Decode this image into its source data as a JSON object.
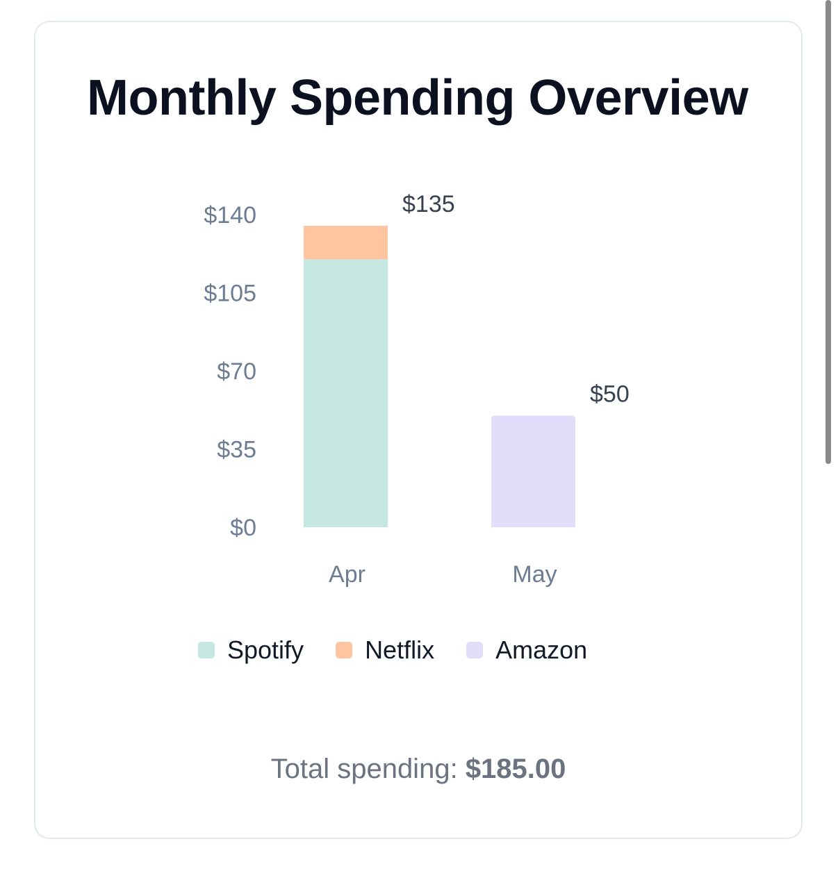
{
  "title": "Monthly Spending Overview",
  "total": {
    "label": "Total spending:",
    "value": "$185.00"
  },
  "colors": {
    "Spotify": "#c4e7e1",
    "Netflix": "#fdc6a1",
    "Amazon": "#e1ddfb"
  },
  "chart_data": {
    "type": "bar",
    "stacked": true,
    "categories": [
      "Apr",
      "May"
    ],
    "series": [
      {
        "name": "Spotify",
        "values": [
          120,
          0
        ]
      },
      {
        "name": "Netflix",
        "values": [
          15,
          0
        ]
      },
      {
        "name": "Amazon",
        "values": [
          0,
          50
        ]
      }
    ],
    "totals": [
      135,
      50
    ],
    "total_labels": [
      "$135",
      "$50"
    ],
    "yticks": [
      0,
      35,
      70,
      105,
      140
    ],
    "ytick_labels": [
      "$0",
      "$35",
      "$70",
      "$105",
      "$140"
    ],
    "ylim": [
      0,
      140
    ],
    "legend": [
      "Spotify",
      "Netflix",
      "Amazon"
    ],
    "legend_position": "bottom",
    "grid": false
  }
}
